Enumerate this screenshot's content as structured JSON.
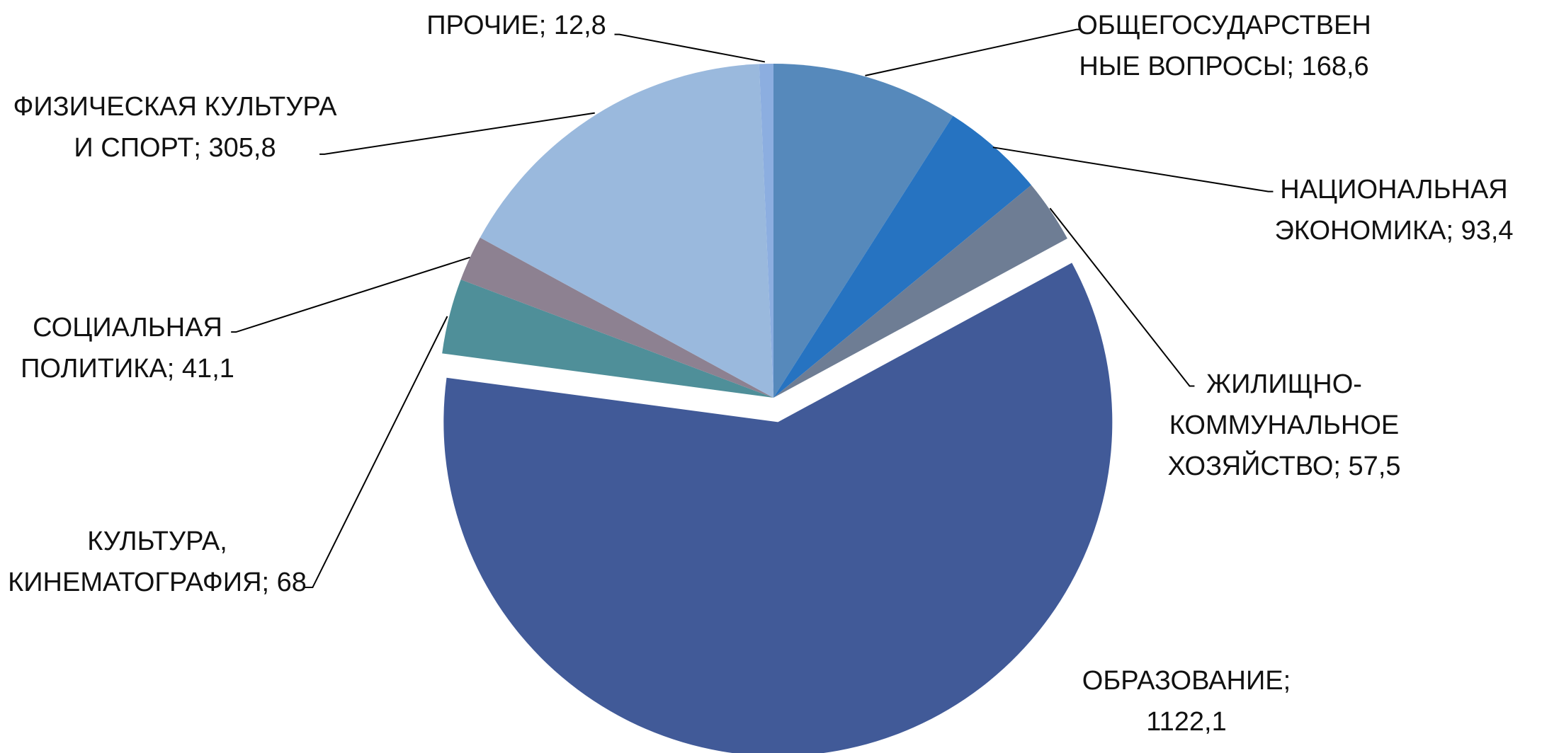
{
  "chart_data": {
    "type": "pie",
    "categories": [
      "ОБЩЕГОСУДАРСТВЕННЫЕ ВОПРОСЫ;",
      "НАЦИОНАЛЬНАЯ ЭКОНОМИКА;",
      "ЖИЛИЩНО-КОММУНАЛЬНОЕ ХОЗЯЙСТВО;",
      "ОБРАЗОВАНИЕ;",
      "КУЛЬТУРА, КИНЕМАТОГРАФИЯ;",
      "СОЦИАЛЬНАЯ ПОЛИТИКА;",
      "ФИЗИЧЕСКАЯ КУЛЬТУРА И СПОРТ;",
      "ПРОЧИЕ;"
    ],
    "values": [
      168.6,
      93.4,
      57.5,
      1122.1,
      68,
      41.1,
      305.8,
      12.8
    ],
    "value_labels": [
      "168,6",
      "93,4",
      "57,5",
      "1122,1",
      "68",
      "41,1",
      "305,8",
      "12,8"
    ],
    "colors": [
      "#5689bb",
      "#2673c1",
      "#6e7d94",
      "#415a98",
      "#4f8f99",
      "#8d8191",
      "#9ab9dd",
      "#8caee0"
    ],
    "explode": [
      false,
      false,
      false,
      true,
      false,
      false,
      false,
      false
    ]
  }
}
